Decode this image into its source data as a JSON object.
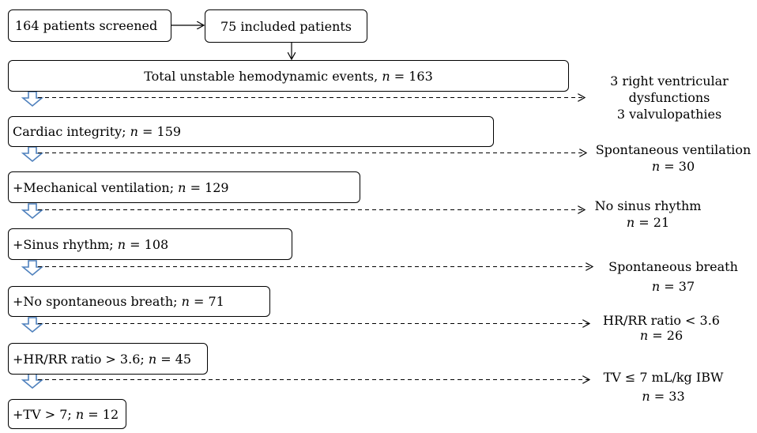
{
  "top_row": {
    "screened": "164 patients screened",
    "included": "75 included patients"
  },
  "steps": [
    {
      "label": "Total unstable hemodynamic events, ",
      "n": "163"
    },
    {
      "label": "Cardiac integrity; ",
      "n": "159"
    },
    {
      "label": "+Mechanical ventilation; ",
      "n": "129"
    },
    {
      "label": "+Sinus rhythm; ",
      "n": "108"
    },
    {
      "label": "+No spontaneous breath; ",
      "n": "71"
    },
    {
      "label": "+HR/RR ratio > 3.6; ",
      "n": "45"
    },
    {
      "label": "+TV > 7; ",
      "n": "12"
    }
  ],
  "exclusions": [
    {
      "lines": [
        "3 right ventricular",
        "dysfunctions",
        "3 valvulopathies"
      ],
      "n": ""
    },
    {
      "lines": [
        "Spontaneous ventilation"
      ],
      "n": "30"
    },
    {
      "lines": [
        "No sinus rhythm"
      ],
      "n": "21"
    },
    {
      "lines": [
        "Spontaneous breath"
      ],
      "n": "37"
    },
    {
      "lines": [
        "HR/RR ratio < 3.6"
      ],
      "n": "26"
    },
    {
      "lines": [
        "TV ≤ 7 mL/kg IBW"
      ],
      "n": "33"
    }
  ],
  "n_symbol": "n",
  "equals": " = "
}
